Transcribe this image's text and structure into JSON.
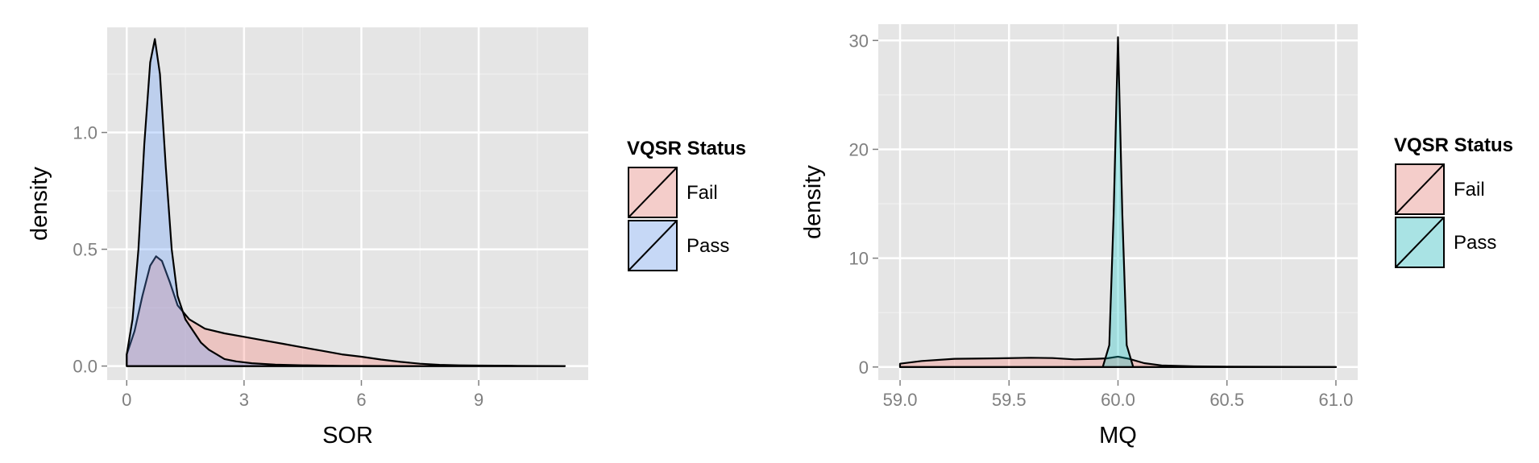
{
  "chart_data": [
    {
      "type": "area",
      "xlabel": "SOR",
      "ylabel": "density",
      "xlim": [
        -0.5,
        11.8
      ],
      "ylim": [
        -0.06,
        1.45
      ],
      "x_ticks": [
        0,
        3,
        6,
        9
      ],
      "x_tick_labels": [
        "0",
        "3",
        "6",
        "9"
      ],
      "y_ticks": [
        0,
        0.5,
        1
      ],
      "y_tick_labels": [
        "0.0",
        "0.5",
        "1.0"
      ],
      "grid": true,
      "legend_title": "VQSR Status",
      "legend_position": "right",
      "series": [
        {
          "name": "Fail",
          "color": "#F8766D",
          "points": [
            [
              0,
              0.05
            ],
            [
              0.2,
              0.15
            ],
            [
              0.4,
              0.3
            ],
            [
              0.6,
              0.43
            ],
            [
              0.75,
              0.47
            ],
            [
              0.9,
              0.45
            ],
            [
              1.1,
              0.36
            ],
            [
              1.3,
              0.26
            ],
            [
              1.6,
              0.2
            ],
            [
              2,
              0.16
            ],
            [
              2.5,
              0.14
            ],
            [
              3,
              0.125
            ],
            [
              3.5,
              0.11
            ],
            [
              4,
              0.095
            ],
            [
              4.5,
              0.08
            ],
            [
              5,
              0.065
            ],
            [
              5.5,
              0.05
            ],
            [
              6,
              0.04
            ],
            [
              6.5,
              0.028
            ],
            [
              7,
              0.018
            ],
            [
              7.5,
              0.01
            ],
            [
              8,
              0.005
            ],
            [
              8.5,
              0.003
            ],
            [
              9,
              0.002
            ],
            [
              10,
              0.001
            ],
            [
              11.2,
              0.0
            ]
          ]
        },
        {
          "name": "Pass",
          "color": "#619CFF",
          "points": [
            [
              0,
              0.05
            ],
            [
              0.15,
              0.2
            ],
            [
              0.3,
              0.5
            ],
            [
              0.45,
              0.95
            ],
            [
              0.6,
              1.3
            ],
            [
              0.72,
              1.4
            ],
            [
              0.85,
              1.25
            ],
            [
              1.0,
              0.85
            ],
            [
              1.15,
              0.5
            ],
            [
              1.3,
              0.3
            ],
            [
              1.5,
              0.2
            ],
            [
              1.7,
              0.15
            ],
            [
              1.9,
              0.1
            ],
            [
              2.1,
              0.07
            ],
            [
              2.3,
              0.05
            ],
            [
              2.5,
              0.03
            ],
            [
              2.8,
              0.02
            ],
            [
              3.2,
              0.012
            ],
            [
              3.8,
              0.006
            ],
            [
              4.5,
              0.003
            ],
            [
              5.5,
              0.001
            ],
            [
              7,
              0.0
            ],
            [
              11.2,
              0.0
            ]
          ]
        }
      ]
    },
    {
      "type": "area",
      "xlabel": "MQ",
      "ylabel": "density",
      "xlim": [
        58.9,
        61.1
      ],
      "ylim": [
        -1.2,
        31.5
      ],
      "x_ticks": [
        59.0,
        59.5,
        60.0,
        60.5,
        61.0
      ],
      "x_tick_labels": [
        "59.0",
        "59.5",
        "60.0",
        "60.5",
        "61.0"
      ],
      "y_ticks": [
        0,
        10,
        20,
        30
      ],
      "y_tick_labels": [
        "0",
        "10",
        "20",
        "30"
      ],
      "grid": true,
      "legend_title": "VQSR Status",
      "legend_position": "right",
      "series": [
        {
          "name": "Fail",
          "color": "#F8766D",
          "points": [
            [
              59.0,
              0.3
            ],
            [
              59.1,
              0.55
            ],
            [
              59.25,
              0.75
            ],
            [
              59.45,
              0.8
            ],
            [
              59.6,
              0.85
            ],
            [
              59.7,
              0.82
            ],
            [
              59.8,
              0.7
            ],
            [
              59.9,
              0.75
            ],
            [
              59.95,
              0.8
            ],
            [
              60.0,
              0.95
            ],
            [
              60.05,
              0.75
            ],
            [
              60.12,
              0.35
            ],
            [
              60.2,
              0.15
            ],
            [
              60.35,
              0.06
            ],
            [
              60.5,
              0.03
            ],
            [
              61.0,
              0.0
            ]
          ]
        },
        {
          "name": "Pass",
          "color": "#00BFC4",
          "points": [
            [
              59.0,
              0.0
            ],
            [
              59.93,
              0.0
            ],
            [
              59.96,
              2.0
            ],
            [
              59.98,
              14.0
            ],
            [
              60.0,
              30.3
            ],
            [
              60.02,
              14.0
            ],
            [
              60.04,
              2.0
            ],
            [
              60.07,
              0.0
            ],
            [
              61.0,
              0.0
            ]
          ]
        }
      ]
    }
  ]
}
